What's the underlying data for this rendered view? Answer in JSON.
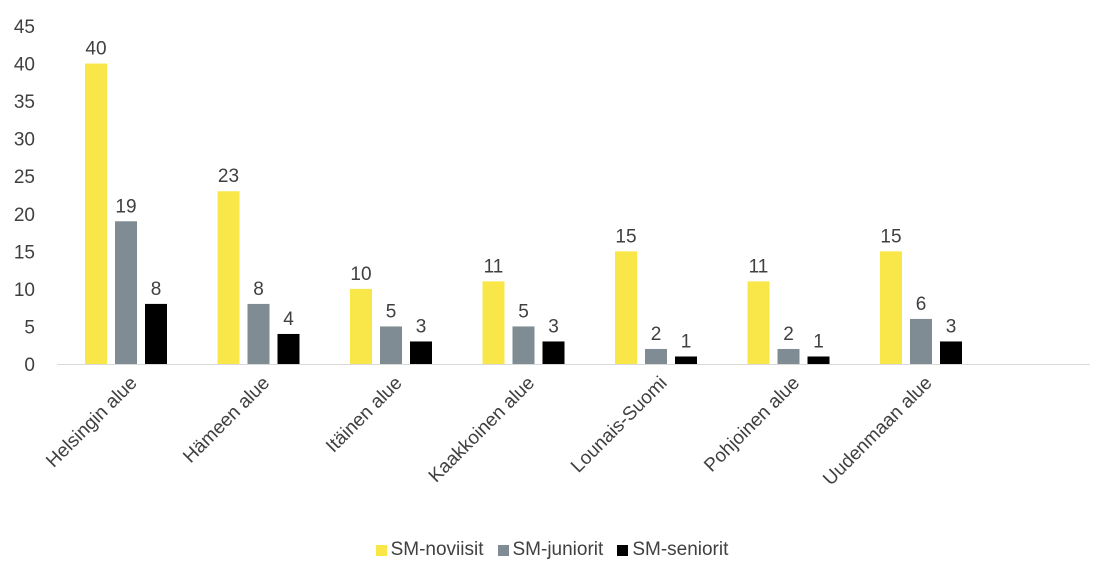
{
  "chart_data": {
    "type": "bar",
    "categories": [
      "Helsingin alue",
      "Hämeen alue",
      "Itäinen alue",
      "Kaakkoinen alue",
      "Lounais-Suomi",
      "Pohjoinen alue",
      "Uudenmaan alue"
    ],
    "series": [
      {
        "name": "SM-noviisit",
        "color": "#F9E74A",
        "values": [
          40,
          23,
          10,
          11,
          15,
          11,
          15
        ]
      },
      {
        "name": "SM-juniorit",
        "color": "#7F8C93",
        "values": [
          19,
          8,
          5,
          5,
          2,
          2,
          6
        ]
      },
      {
        "name": "SM-seniorit",
        "color": "#000000",
        "values": [
          8,
          4,
          3,
          3,
          1,
          1,
          3
        ]
      }
    ],
    "ylim": [
      0,
      45
    ],
    "yticks": [
      0,
      5,
      10,
      15,
      20,
      25,
      30,
      35,
      40,
      45
    ],
    "grid": false,
    "legend_position": "bottom",
    "data_labels": true
  }
}
